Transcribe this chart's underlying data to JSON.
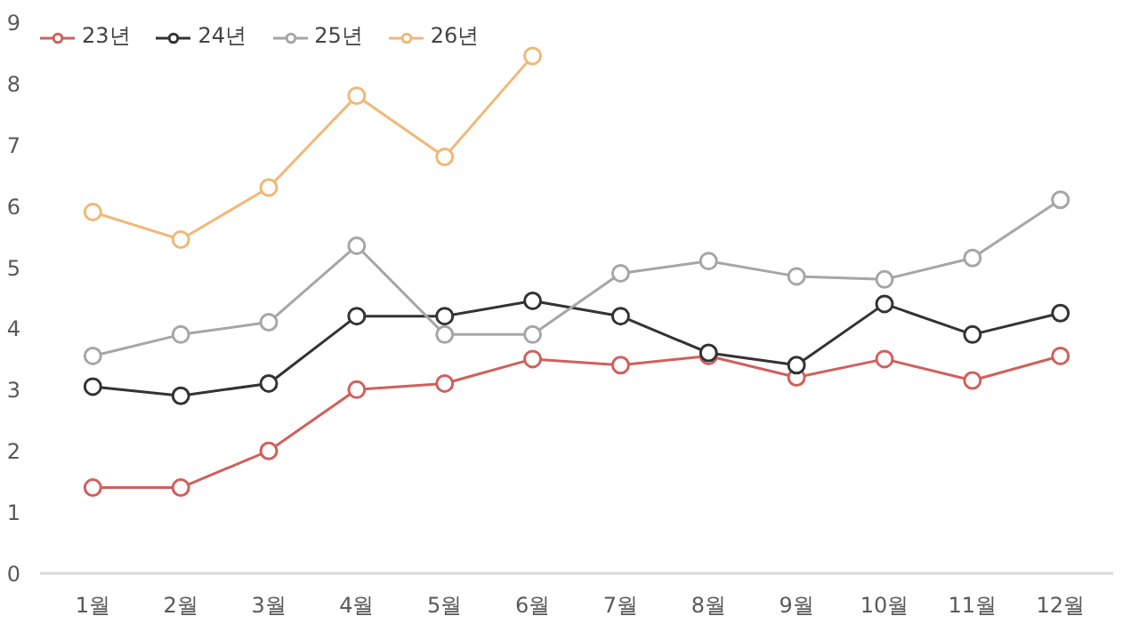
{
  "chart_data": {
    "type": "line",
    "categories": [
      "1월",
      "2월",
      "3월",
      "4월",
      "5월",
      "6월",
      "7월",
      "8월",
      "9월",
      "10월",
      "11월",
      "12월"
    ],
    "ylim": [
      0,
      9
    ],
    "yticks": [
      0,
      1,
      2,
      3,
      4,
      5,
      6,
      7,
      8,
      9
    ],
    "grid": false,
    "legend": "top left",
    "marker": "circle",
    "line_style": "solid",
    "series": [
      {
        "name": "23년",
        "color": "#d0605c",
        "values": [
          1.4,
          1.4,
          2.0,
          3.0,
          3.1,
          3.5,
          3.4,
          3.55,
          3.2,
          3.5,
          3.15,
          3.55
        ]
      },
      {
        "name": "24년",
        "color": "#333333",
        "values": [
          3.05,
          2.9,
          3.1,
          4.2,
          4.2,
          4.45,
          4.2,
          3.6,
          3.4,
          4.4,
          3.9,
          4.25
        ]
      },
      {
        "name": "25년",
        "color": "#a6a6a6",
        "values": [
          3.55,
          3.9,
          4.1,
          5.35,
          3.9,
          3.9,
          4.9,
          5.1,
          4.85,
          4.8,
          5.15,
          6.1
        ]
      },
      {
        "name": "26년",
        "color": "#f0b878",
        "values": [
          5.9,
          5.45,
          6.3,
          7.8,
          6.8,
          8.45,
          null,
          null,
          null,
          null,
          null,
          null
        ]
      }
    ]
  }
}
